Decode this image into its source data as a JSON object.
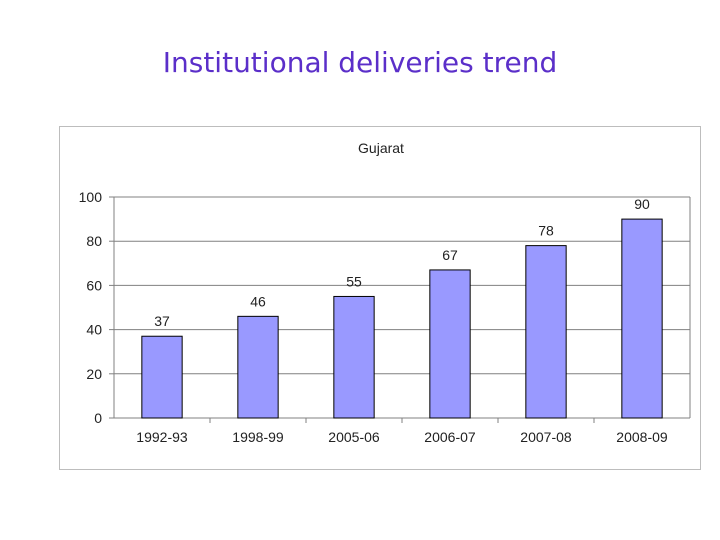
{
  "slide": {
    "title": "Institutional deliveries trend"
  },
  "chart_data": {
    "type": "bar",
    "title": "Gujarat",
    "xlabel": "",
    "ylabel": "",
    "categories": [
      "1992-93",
      "1998-99",
      "2005-06",
      "2006-07",
      "2007-08",
      "2008-09"
    ],
    "values": [
      37,
      46,
      55,
      67,
      78,
      90
    ],
    "ylim": [
      0,
      100
    ],
    "yticks": [
      0,
      20,
      40,
      60,
      80,
      100
    ],
    "grid": true,
    "legend": "none",
    "bar_color": "#9999ff",
    "bar_outline": "#000000",
    "plot_background": "#ffffff"
  }
}
